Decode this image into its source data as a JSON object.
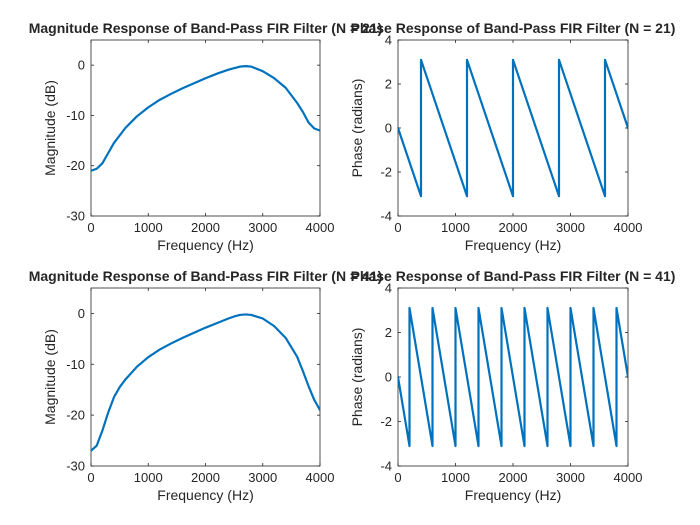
{
  "chart_data": [
    {
      "type": "line",
      "title": "Magnitude Response of Band-Pass FIR Filter (N = 21)",
      "xlabel": "Frequency (Hz)",
      "ylabel": "Magnitude (dB)",
      "xlim": [
        0,
        4000
      ],
      "ylim": [
        -30,
        5
      ],
      "xticks": [
        0,
        1000,
        2000,
        3000,
        4000
      ],
      "yticks": [
        0,
        -10,
        -20,
        -30
      ],
      "grid": false,
      "color": "#0072bd",
      "series": [
        {
          "x": [
            0,
            100,
            200,
            300,
            400,
            600,
            800,
            1000,
            1200,
            1400,
            1600,
            1800,
            2000,
            2200,
            2400,
            2600,
            2700,
            2800,
            3000,
            3200,
            3400,
            3600,
            3700,
            3800,
            3900,
            4000
          ],
          "y": [
            -21,
            -20.6,
            -19.5,
            -17.5,
            -15.5,
            -12.5,
            -10.2,
            -8.4,
            -6.9,
            -5.7,
            -4.6,
            -3.6,
            -2.6,
            -1.7,
            -0.9,
            -0.3,
            -0.2,
            -0.3,
            -1.2,
            -2.6,
            -4.5,
            -7.5,
            -9.3,
            -11.4,
            -12.6,
            -13
          ]
        }
      ]
    },
    {
      "type": "line",
      "title": "Phase Response of Band-Pass FIR Filter (N = 21)",
      "xlabel": "Frequency (Hz)",
      "ylabel": "Phase (radians)",
      "xlim": [
        0,
        4000
      ],
      "ylim": [
        -4,
        4
      ],
      "xticks": [
        0,
        1000,
        2000,
        3000,
        4000
      ],
      "yticks": [
        4,
        2,
        0,
        -2,
        -4
      ],
      "grid": false,
      "color": "#0072bd",
      "series": [
        {
          "x": [
            0,
            400,
            400,
            1200,
            1200,
            2000,
            2000,
            2800,
            2800,
            3600,
            3600,
            4000
          ],
          "y": [
            0,
            -3.1,
            3.1,
            -3.1,
            3.1,
            -3.1,
            3.1,
            -3.1,
            3.1,
            -3.1,
            3.1,
            0
          ]
        }
      ]
    },
    {
      "type": "line",
      "title": "Magnitude Response of Band-Pass FIR Filter (N = 41)",
      "xlabel": "Frequency (Hz)",
      "ylabel": "Magnitude (dB)",
      "xlim": [
        0,
        4000
      ],
      "ylim": [
        -30,
        5
      ],
      "xticks": [
        0,
        1000,
        2000,
        3000,
        4000
      ],
      "yticks": [
        0,
        -10,
        -20,
        -30
      ],
      "grid": false,
      "color": "#0072bd",
      "series": [
        {
          "x": [
            0,
            100,
            200,
            300,
            400,
            500,
            600,
            800,
            1000,
            1200,
            1400,
            1600,
            1800,
            2000,
            2200,
            2400,
            2500,
            2600,
            2700,
            2800,
            3000,
            3200,
            3400,
            3600,
            3700,
            3800,
            3900,
            4000
          ],
          "y": [
            -27,
            -26,
            -23,
            -19.5,
            -16.5,
            -14.5,
            -13,
            -10.5,
            -8.6,
            -7.1,
            -5.9,
            -4.8,
            -3.8,
            -2.8,
            -1.9,
            -1,
            -0.6,
            -0.3,
            -0.2,
            -0.3,
            -1,
            -2.5,
            -4.8,
            -8.5,
            -11.3,
            -14.3,
            -17,
            -19
          ]
        }
      ]
    },
    {
      "type": "line",
      "title": "Phase Response of Band-Pass FIR Filter (N = 41)",
      "xlabel": "Frequency (Hz)",
      "ylabel": "Phase (radians)",
      "xlim": [
        0,
        4000
      ],
      "ylim": [
        -4,
        4
      ],
      "xticks": [
        0,
        1000,
        2000,
        3000,
        4000
      ],
      "yticks": [
        4,
        2,
        0,
        -2,
        -4
      ],
      "grid": false,
      "color": "#0072bd",
      "series": [
        {
          "x": [
            0,
            200,
            200,
            600,
            600,
            1000,
            1000,
            1400,
            1400,
            1800,
            1800,
            2200,
            2200,
            2600,
            2600,
            3000,
            3000,
            3400,
            3400,
            3800,
            3800,
            4000
          ],
          "y": [
            0,
            -3.1,
            3.1,
            -3.1,
            3.1,
            -3.1,
            3.1,
            -3.1,
            3.1,
            -3.1,
            3.1,
            -3.1,
            3.1,
            -3.1,
            3.1,
            -3.1,
            3.1,
            -3.1,
            3.1,
            -3.1,
            3.1,
            0
          ]
        }
      ]
    }
  ]
}
